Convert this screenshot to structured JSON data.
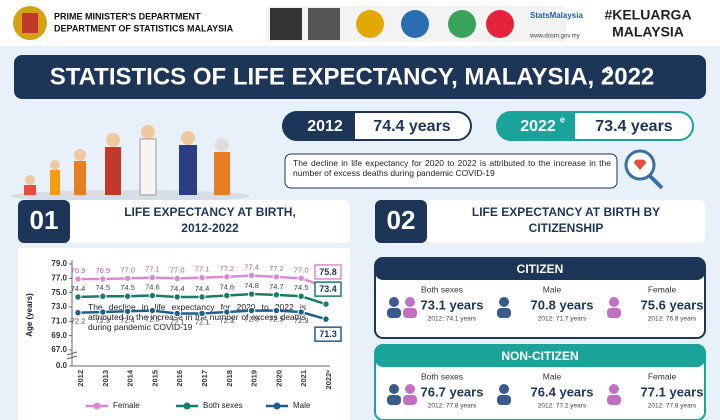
{
  "header": {
    "agency_line1": "PRIME MINISTER'S DEPARTMENT",
    "agency_line2": "DEPARTMENT OF STATISTICS MALAYSIA",
    "social": "StatsMalaysia",
    "website": "www.dosm.gov.my",
    "campaign_line1": "#KELUARGA",
    "campaign_line2": "MALAYSIA"
  },
  "banner": {
    "title": "STATISTICS OF LIFE EXPECTANCY, MALAYSIA, 2022",
    "title_sup": "e"
  },
  "highlights": [
    {
      "year": "2012",
      "value": "74.4 years"
    },
    {
      "year": "2022",
      "year_sup": "e",
      "value": "73.4 years"
    }
  ],
  "note": "The decline in life expectancy for 2020 to 2022 is attributed to the increase in the number of excess deaths during pandemic COVID-19",
  "section1": {
    "number": "01",
    "title_line1": "LIFE EXPECTANCY AT BIRTH,",
    "title_line2": "2012-2022"
  },
  "chart_data": {
    "type": "line",
    "y_label": "Age (years)",
    "annotation": "The decline in life expectancy for 2020 to 2022 is attributed to the increase in the number of excess deaths during pandemic COVID-19",
    "categories": [
      "2012",
      "2013",
      "2014",
      "2015",
      "2016",
      "2017",
      "2018",
      "2019",
      "2020",
      "2021",
      "2022ᵉ"
    ],
    "series": [
      {
        "name": "Female",
        "color": "#d98ad6",
        "values": [
          76.9,
          76.9,
          77.0,
          77.1,
          77.0,
          77.1,
          77.2,
          77.4,
          77.2,
          77.0,
          75.8
        ],
        "value_labels": [
          "76.9",
          "76.9",
          "77.0",
          "77.1",
          "77.0",
          "77.1",
          "77.2",
          "77.4",
          "77.2",
          "77.0",
          "75.8"
        ]
      },
      {
        "name": "Both sexes",
        "color": "#1a7a6e",
        "values": [
          74.4,
          74.5,
          74.5,
          74.6,
          74.4,
          74.4,
          74.6,
          74.8,
          74.7,
          74.5,
          73.4
        ],
        "value_labels": [
          "74.4",
          "74.5",
          "74.5",
          "74.6",
          "74.4",
          "74.4",
          "74.6",
          "74.8",
          "74.7",
          "74.5",
          "73.4"
        ]
      },
      {
        "name": "Male",
        "color": "#1f5f8b",
        "values": [
          72.2,
          72.3,
          72.4,
          72.5,
          72.1,
          72.1,
          72.3,
          72.5,
          72.5,
          72.3,
          71.3
        ],
        "value_labels": [
          "72.2",
          "72.3",
          "72.4",
          "72.5",
          "72.1",
          "72.1",
          "72.3",
          "72.5",
          "72.5",
          "72.3",
          "71.3"
        ]
      }
    ],
    "ylim": [
      67,
      79
    ],
    "axis_break": true,
    "yticks": [
      {
        "value": 79,
        "label": "79.0"
      },
      {
        "value": 77,
        "label": "77.0"
      },
      {
        "value": 75,
        "label": "75.0"
      },
      {
        "value": 73,
        "label": "73.0"
      },
      {
        "value": 71,
        "label": "71.0"
      },
      {
        "value": 69,
        "label": "69.0"
      },
      {
        "value": 67,
        "label": "67.0"
      },
      {
        "value": 0,
        "label": "0.0"
      }
    ],
    "grid": false,
    "legend": "bottom"
  },
  "section2": {
    "number": "02",
    "title_line1": "LIFE EXPECTANCY AT BIRTH BY",
    "title_line2": "CITIZENSHIP",
    "groups": [
      {
        "title": "CITIZEN",
        "cells": [
          {
            "label": "Both sexes",
            "value": "73.1 years",
            "base": "2012: 74.1 years"
          },
          {
            "label": "Male",
            "value": "70.8 years",
            "base": "2012: 71.7 years"
          },
          {
            "label": "Female",
            "value": "75.6 years",
            "base": "2012: 76.8 years"
          }
        ]
      },
      {
        "title": "NON-CITIZEN",
        "cells": [
          {
            "label": "Both sexes",
            "value": "76.7 years",
            "base": "2012: 77.8 years"
          },
          {
            "label": "Male",
            "value": "76.4 years",
            "base": "2012: 77.2 years"
          },
          {
            "label": "Female",
            "value": "77.1 years",
            "base": "2012: 77.8 years"
          }
        ]
      }
    ]
  }
}
